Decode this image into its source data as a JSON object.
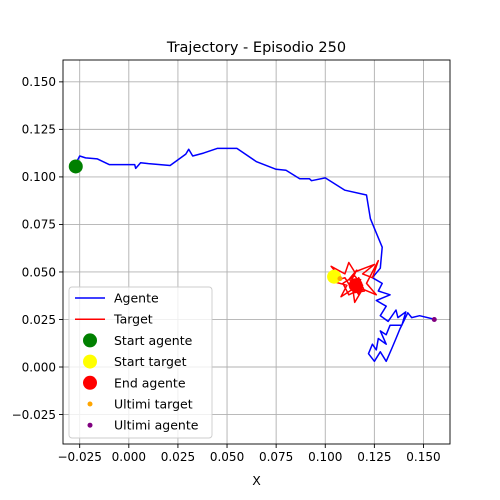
{
  "chart_data": {
    "type": "line",
    "title": "Trajectory - Episodio 250",
    "xlabel": "X",
    "ylabel": "",
    "xlim": [
      -0.0335,
      0.1635
    ],
    "ylim": [
      -0.0405,
      0.1615
    ],
    "grid": true,
    "legend_position": "lower-left",
    "xticks": [
      -0.025,
      0.0,
      0.025,
      0.05,
      0.075,
      0.1,
      0.125,
      0.15
    ],
    "xtick_labels": [
      "−0.025",
      "0.000",
      "0.025",
      "0.050",
      "0.075",
      "0.100",
      "0.125",
      "0.150"
    ],
    "yticks": [
      -0.025,
      0.0,
      0.025,
      0.05,
      0.075,
      0.1,
      0.125,
      0.15
    ],
    "ytick_labels": [
      "−0.025",
      "0.000",
      "0.025",
      "0.050",
      "0.075",
      "0.100",
      "0.125",
      "0.150"
    ],
    "series": [
      {
        "name": "Agente",
        "kind": "line",
        "color": "#0000ff",
        "points": [
          [
            -0.027,
            0.107
          ],
          [
            -0.025,
            0.111
          ],
          [
            -0.022,
            0.11
          ],
          [
            -0.016,
            0.1095
          ],
          [
            -0.01,
            0.1065
          ],
          [
            0.003,
            0.1065
          ],
          [
            0.0035,
            0.1045
          ],
          [
            0.006,
            0.1075
          ],
          [
            0.01,
            0.107
          ],
          [
            0.021,
            0.106
          ],
          [
            0.029,
            0.112
          ],
          [
            0.0305,
            0.1145
          ],
          [
            0.0325,
            0.111
          ],
          [
            0.038,
            0.1125
          ],
          [
            0.045,
            0.115
          ],
          [
            0.055,
            0.115
          ],
          [
            0.065,
            0.108
          ],
          [
            0.075,
            0.104
          ],
          [
            0.08,
            0.1035
          ],
          [
            0.087,
            0.099
          ],
          [
            0.092,
            0.099
          ],
          [
            0.093,
            0.098
          ],
          [
            0.1,
            0.0995
          ],
          [
            0.11,
            0.093
          ],
          [
            0.121,
            0.0905
          ],
          [
            0.123,
            0.078
          ],
          [
            0.129,
            0.063
          ],
          [
            0.128,
            0.052
          ],
          [
            0.124,
            0.047
          ],
          [
            0.129,
            0.044
          ],
          [
            0.127,
            0.04
          ],
          [
            0.133,
            0.038
          ],
          [
            0.126,
            0.035
          ],
          [
            0.131,
            0.032
          ],
          [
            0.128,
            0.027
          ],
          [
            0.132,
            0.024
          ],
          [
            0.136,
            0.03
          ],
          [
            0.137,
            0.026
          ],
          [
            0.141,
            0.029
          ],
          [
            0.139,
            0.022
          ],
          [
            0.133,
            0.022
          ],
          [
            0.131,
            0.017
          ],
          [
            0.128,
            0.019
          ],
          [
            0.131,
            0.012
          ],
          [
            0.127,
            0.015
          ],
          [
            0.126,
            0.009
          ],
          [
            0.124,
            0.012
          ],
          [
            0.122,
            0.007
          ],
          [
            0.125,
            0.003
          ],
          [
            0.128,
            0.008
          ],
          [
            0.131,
            0.003
          ],
          [
            0.134,
            0.01
          ],
          [
            0.136,
            0.015
          ],
          [
            0.138,
            0.02
          ],
          [
            0.142,
            0.0285
          ],
          [
            0.144,
            0.026
          ],
          [
            0.148,
            0.027
          ],
          [
            0.156,
            0.025
          ]
        ]
      },
      {
        "name": "Target",
        "kind": "line",
        "color": "#ff0000",
        "points": [
          [
            0.107,
            0.0478
          ],
          [
            0.103,
            0.053
          ],
          [
            0.11,
            0.049
          ],
          [
            0.112,
            0.055
          ],
          [
            0.115,
            0.05
          ],
          [
            0.12,
            0.052
          ],
          [
            0.125,
            0.054
          ],
          [
            0.119,
            0.049
          ],
          [
            0.124,
            0.047
          ],
          [
            0.127,
            0.056
          ],
          [
            0.121,
            0.044
          ],
          [
            0.126,
            0.038
          ],
          [
            0.119,
            0.041
          ],
          [
            0.115,
            0.034
          ],
          [
            0.114,
            0.041
          ],
          [
            0.108,
            0.037
          ],
          [
            0.111,
            0.043
          ],
          [
            0.104,
            0.045
          ],
          [
            0.11,
            0.047
          ],
          [
            0.113,
            0.042
          ],
          [
            0.118,
            0.046
          ],
          [
            0.116,
            0.04
          ],
          [
            0.112,
            0.038
          ],
          [
            0.109,
            0.044
          ],
          [
            0.115,
            0.048
          ],
          [
            0.119,
            0.043
          ],
          [
            0.117,
            0.038
          ],
          [
            0.113,
            0.045
          ],
          [
            0.116,
            0.051
          ],
          [
            0.112,
            0.046
          ],
          [
            0.118,
            0.044
          ],
          [
            0.114,
            0.039
          ],
          [
            0.12,
            0.04
          ],
          [
            0.117,
            0.047
          ],
          [
            0.115,
            0.043
          ]
        ]
      }
    ],
    "markers": [
      {
        "name": "Start agente",
        "shape": "circle",
        "color": "#008000",
        "x": -0.027,
        "y": 0.1055
      },
      {
        "name": "Start target",
        "shape": "circle",
        "color": "#ffff00",
        "x": 0.1045,
        "y": 0.0475
      },
      {
        "name": "End agente",
        "shape": "circle",
        "color": "#ff0000",
        "x": 0.1155,
        "y": 0.043
      },
      {
        "name": "Ultimi target",
        "shape": "dot",
        "color": "#ffa500",
        "x": 0.1075,
        "y": 0.0465
      },
      {
        "name": "Ultimi agente",
        "shape": "dot",
        "color": "#800080",
        "x": 0.1555,
        "y": 0.025
      }
    ],
    "legend": [
      {
        "label": "Agente",
        "kind": "line",
        "color": "#0000ff"
      },
      {
        "label": "Target",
        "kind": "line",
        "color": "#ff0000"
      },
      {
        "label": "Start agente",
        "kind": "circle",
        "color": "#008000"
      },
      {
        "label": "Start target",
        "kind": "circle",
        "color": "#ffff00"
      },
      {
        "label": "End agente",
        "kind": "circle",
        "color": "#ff0000"
      },
      {
        "label": "Ultimi target",
        "kind": "dot",
        "color": "#ffa500"
      },
      {
        "label": "Ultimi agente",
        "kind": "dot",
        "color": "#800080"
      }
    ]
  }
}
